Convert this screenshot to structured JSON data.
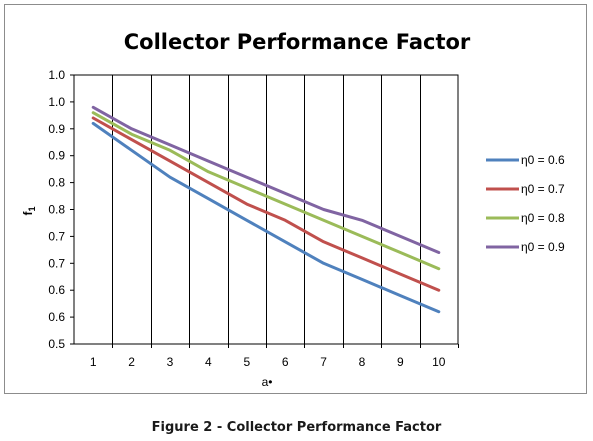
{
  "chart_data": {
    "type": "line",
    "title": "Collector Performance Factor",
    "xlabel": "a•",
    "ylabel": "f1",
    "x": [
      1,
      2,
      3,
      4,
      5,
      6,
      7,
      8,
      9,
      10
    ],
    "x_tick_labels": [
      "1",
      "2",
      "3",
      "4",
      "5",
      "6",
      "7",
      "8",
      "9",
      "10"
    ],
    "y_tick_labels": [
      "0.5",
      "0.6",
      "0.6",
      "0.7",
      "0.7",
      "0.8",
      "0.8",
      "0.9",
      "0.9",
      "1.0",
      "1.0"
    ],
    "ylim": [
      0.5,
      1.0
    ],
    "grid": "vertical",
    "legend": "right",
    "series": [
      {
        "name": "η0 = 0.6",
        "color": "#4f81bd",
        "values": [
          0.91,
          0.86,
          0.81,
          0.77,
          0.73,
          0.69,
          0.65,
          0.62,
          0.59,
          0.56
        ]
      },
      {
        "name": "η0 = 0.7",
        "color": "#c0504d",
        "values": [
          0.92,
          0.88,
          0.84,
          0.8,
          0.76,
          0.73,
          0.69,
          0.66,
          0.63,
          0.6
        ]
      },
      {
        "name": "η0 = 0.8",
        "color": "#9bbb59",
        "values": [
          0.93,
          0.89,
          0.86,
          0.82,
          0.79,
          0.76,
          0.73,
          0.7,
          0.67,
          0.64
        ]
      },
      {
        "name": "η0 = 0.9",
        "color": "#8064a2",
        "values": [
          0.94,
          0.9,
          0.87,
          0.84,
          0.81,
          0.78,
          0.75,
          0.73,
          0.7,
          0.67
        ]
      }
    ]
  },
  "caption": "Figure 2 - Collector Performance Factor"
}
